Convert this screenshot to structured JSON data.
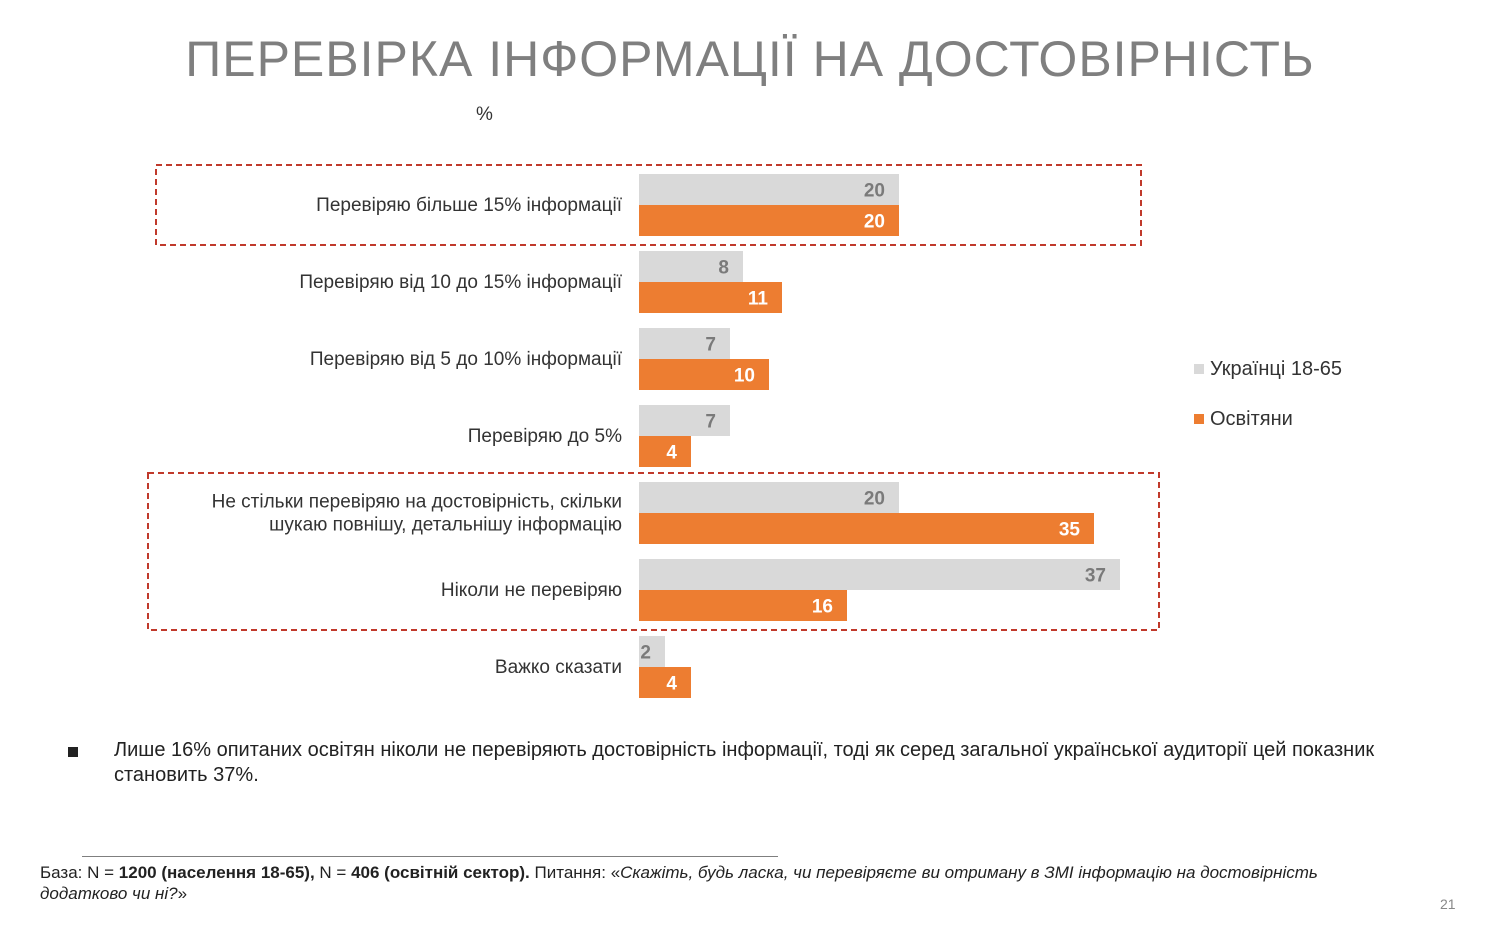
{
  "title": "ПЕРЕВІРКА ІНФОРМАЦІЇ НА ДОСТОВІРНІСТЬ",
  "unit_label": "%",
  "legend": [
    {
      "label": "Українці 18-65",
      "color": "#d9d9d9"
    },
    {
      "label": "Освітяни",
      "color": "#ed7d31"
    }
  ],
  "chart_data": {
    "type": "bar",
    "orientation": "horizontal",
    "categories": [
      [
        "Перевіряю більше 15% інформації"
      ],
      [
        "Перевіряю від 10 до 15% інформації"
      ],
      [
        "Перевіряю від 5 до 10% інформації"
      ],
      [
        "Перевіряю до 5%"
      ],
      [
        "Не стільки перевіряю на достовірність, скільки",
        "шукаю повнішу, детальнішу інформацію"
      ],
      [
        "Ніколи не перевіряю"
      ],
      [
        "Важко сказати"
      ]
    ],
    "series": [
      {
        "name": "Українці 18-65",
        "color": "#d9d9d9",
        "label_color": "#7a7a7a",
        "values": [
          20,
          8,
          7,
          7,
          20,
          37,
          2
        ]
      },
      {
        "name": "Освітяни",
        "color": "#ed7d31",
        "label_color": "#ffffff",
        "values": [
          20,
          11,
          10,
          4,
          35,
          16,
          4
        ]
      }
    ],
    "highlight_groups": [
      [
        0,
        0
      ],
      [
        4,
        5
      ]
    ],
    "highlight_color": "#c0392b",
    "legend_position": "right"
  },
  "bullet_text": "Лише 16% опитаних освітян ніколи не перевіряють достовірність інформації, тоді як серед загальної української аудиторії цей показник становить 37%.",
  "footnote": {
    "base_prefix": "База: N = ",
    "base_pop": "1200 (населення 18-65),",
    "n_mid": " N = ",
    "base_edu": "406 (освітній сектор).",
    "question_prefix": " Питання: «",
    "question": "Скажіть, будь ласка, чи перевіряєте ви отриману в ЗМІ інформацію на достовірність додатково чи ні?",
    "question_suffix": "»"
  },
  "page_number": "21"
}
